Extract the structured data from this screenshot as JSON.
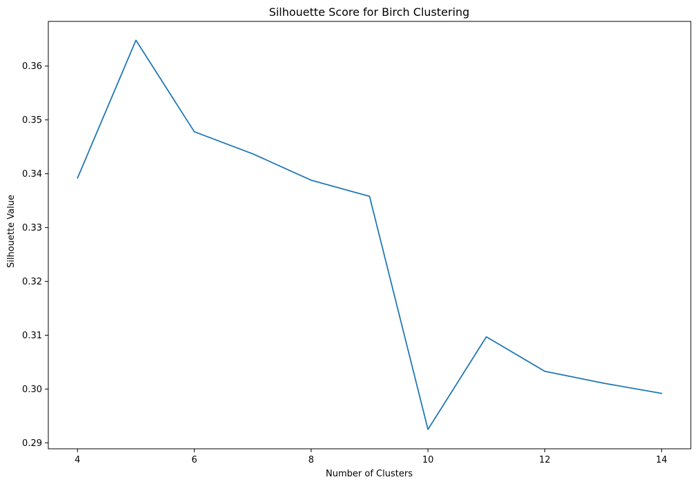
{
  "chart_data": {
    "type": "line",
    "title": "Silhouette Score for Birch Clustering",
    "xlabel": "Number of Clusters",
    "ylabel": "Silhouette Value",
    "xlim": [
      3.5,
      14.5
    ],
    "ylim": [
      0.2889,
      0.3683
    ],
    "xticks": [
      4,
      6,
      8,
      10,
      12,
      14
    ],
    "yticks": [
      0.29,
      0.3,
      0.31,
      0.32,
      0.33,
      0.34,
      0.35,
      0.36
    ],
    "ytick_labels": [
      "0.29",
      "0.30",
      "0.31",
      "0.32",
      "0.33",
      "0.34",
      "0.35",
      "0.36"
    ],
    "grid": false,
    "series": [
      {
        "color": "#1f77b4",
        "x": [
          4,
          5,
          6,
          7,
          8,
          9,
          10,
          11,
          12,
          13,
          14
        ],
        "y": [
          0.3392,
          0.3648,
          0.3478,
          0.3437,
          0.3388,
          0.3358,
          0.2925,
          0.3097,
          0.3033,
          0.3011,
          0.2992
        ]
      }
    ]
  }
}
